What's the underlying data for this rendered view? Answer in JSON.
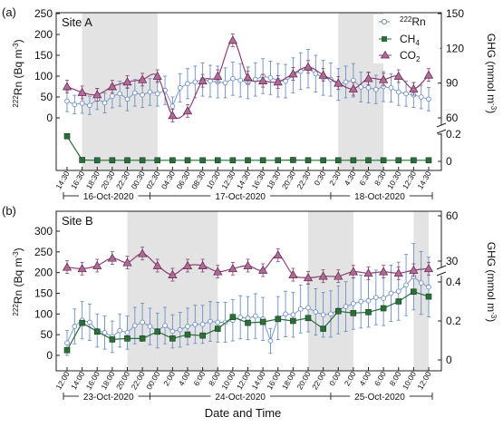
{
  "panels": [
    {
      "id": "a",
      "panel_label": "(a)",
      "site_label": "Site A",
      "x_tick_labels": [
        "14:30",
        "16:30",
        "18:30",
        "20:30",
        "22:30",
        "00:30",
        "02:30",
        "04:30",
        "06:30",
        "08:30",
        "10:30",
        "12:30",
        "14:30",
        "16:30",
        "18:30",
        "20:30",
        "22:30",
        "0:30",
        "2:30",
        "4:30",
        "6:30",
        "8:30",
        "10:30",
        "12:30",
        "14:30"
      ],
      "date_labels": [
        "16-Oct-2020",
        "17-Oct-2020",
        "18-Oct-2020"
      ]
    },
    {
      "id": "b",
      "panel_label": "(b)",
      "site_label": "Site B",
      "x_tick_labels": [
        "12:00",
        "14:00",
        "16:00",
        "18:00",
        "20:00",
        "22:00",
        "00:00",
        "2:00",
        "4:00",
        "6:00",
        "8:00",
        "10:00",
        "12:00",
        "14:00",
        "16:00",
        "18:00",
        "20:00",
        "22:00",
        "0:00",
        "2:00",
        "4:00",
        "6:00",
        "8:00",
        "10:00",
        "12:00"
      ],
      "date_labels": [
        "23-Oct-2020",
        "24-Oct-2020",
        "25-Oct-2020"
      ]
    }
  ],
  "axis_titles": {
    "rn_prefix": "222",
    "rn_main": "Rn (Bq m",
    "rn_exp": "-3",
    "rn_close": ")",
    "ghg_main": "GHG (mmol m",
    "ghg_exp": "-3",
    "ghg_close": ")",
    "x_title": "Date and Time"
  },
  "legend": {
    "rn_prefix": "222",
    "rn_main": "Rn",
    "ch4_main": "CH",
    "ch4_sub": "4",
    "co2_main": "CO",
    "co2_sub": "2"
  },
  "colors": {
    "rn": "#6d8fc4",
    "ch4": "#2b6e3b",
    "co2": "#8e3e72",
    "co2_fill": "#b06a96",
    "shade": "#d9d9d9"
  },
  "chart_data": [
    {
      "type": "line",
      "panel": "a",
      "x_unit": "2-hour ticks from 14:30 16-Oct-2020",
      "rn_axis": {
        "ylim": [
          -30,
          250
        ],
        "ticks": [
          0,
          50,
          100,
          150,
          200,
          250
        ]
      },
      "ghg_upper_axis": {
        "ylim": [
          46,
          150
        ],
        "ticks": [
          60,
          90,
          120,
          150
        ]
      },
      "ghg_lower_axis": {
        "ticks": [
          0,
          0.2
        ]
      },
      "shaded_x": [
        [
          1,
          6
        ],
        [
          18,
          21
        ]
      ],
      "series": [
        {
          "name": "CO2",
          "axis": "ghg_upper",
          "x": [
            0,
            1,
            2,
            3,
            4,
            5,
            6,
            7,
            8,
            9,
            10,
            11,
            12,
            13,
            14,
            15,
            16,
            17,
            18,
            19,
            20,
            21,
            22,
            23,
            24
          ],
          "y": [
            87,
            82,
            80,
            87,
            91,
            93,
            96,
            62,
            66,
            92,
            96,
            127,
            95,
            92,
            91,
            98,
            104,
            97,
            90,
            85,
            94,
            93,
            96,
            85,
            97
          ]
        },
        {
          "name": "CH4",
          "axis": "ghg_lower",
          "x": [
            0,
            1,
            2,
            3,
            4,
            5,
            6,
            7,
            8,
            9,
            10,
            11,
            12,
            13,
            14,
            15,
            16,
            17,
            18,
            19,
            20,
            21,
            22,
            23,
            24
          ],
          "y": [
            0.185,
            0.01,
            0.008,
            0.008,
            0.008,
            0.008,
            0.008,
            0.008,
            0.008,
            0.008,
            0.008,
            0.008,
            0.008,
            0.008,
            0.008,
            0.01,
            0.008,
            0.008,
            0.008,
            0.008,
            0.008,
            0.008,
            0.008,
            0.008,
            0.008
          ]
        },
        {
          "name": "222Rn",
          "axis": "rn",
          "x": [
            0,
            0.5,
            1,
            1.5,
            2,
            2.5,
            3,
            3.5,
            4,
            4.5,
            5,
            5.5,
            6,
            6.5,
            7,
            7.5,
            8,
            8.5,
            9,
            9.5,
            10,
            10.5,
            11,
            11.5,
            12,
            12.5,
            13,
            13.5,
            14,
            14.5,
            15,
            15.5,
            16,
            16.5,
            17,
            17.5,
            18,
            18.5,
            19,
            19.5,
            20,
            20.5,
            21,
            21.5,
            22,
            22.5,
            23,
            23.5,
            24
          ],
          "y": [
            40,
            32,
            35,
            30,
            45,
            36,
            52,
            58,
            45,
            60,
            55,
            62,
            58,
            66,
            28,
            72,
            82,
            86,
            92,
            88,
            86,
            84,
            94,
            90,
            84,
            92,
            100,
            96,
            90,
            88,
            102,
            112,
            118,
            106,
            96,
            92,
            80,
            86,
            90,
            74,
            72,
            68,
            75,
            72,
            62,
            58,
            55,
            50,
            45
          ],
          "err": [
            25,
            22,
            24,
            22,
            25,
            24,
            28,
            30,
            28,
            32,
            30,
            32,
            30,
            34,
            22,
            34,
            36,
            38,
            40,
            38,
            38,
            36,
            40,
            40,
            38,
            40,
            42,
            40,
            40,
            40,
            42,
            44,
            46,
            44,
            42,
            40,
            38,
            38,
            40,
            36,
            36,
            34,
            36,
            34,
            32,
            30,
            30,
            28,
            28
          ]
        }
      ]
    },
    {
      "type": "line",
      "panel": "b",
      "x_unit": "2-hour ticks from 12:00 23-Oct-2020",
      "rn_axis": {
        "ylim": [
          -30,
          320
        ],
        "ticks": [
          0,
          50,
          100,
          150,
          200,
          250,
          300
        ]
      },
      "ghg_upper_axis": {
        "ylim": [
          6,
          60
        ],
        "ticks": [
          30,
          60
        ]
      },
      "ghg_lower_axis": {
        "ticks": [
          0,
          0.2,
          0.4
        ]
      },
      "shaded_x": [
        [
          4,
          10
        ],
        [
          16,
          19
        ],
        [
          23,
          24
        ]
      ],
      "series": [
        {
          "name": "CO2",
          "axis": "ghg_upper",
          "x": [
            0,
            1,
            2,
            3,
            4,
            5,
            6,
            7,
            8,
            9,
            10,
            11,
            12,
            13,
            14,
            15,
            16,
            17,
            18,
            19,
            20,
            21,
            22,
            23,
            24
          ],
          "y": [
            26,
            25,
            27,
            32,
            29,
            35,
            27,
            21,
            27,
            27,
            23,
            25,
            27,
            24,
            34,
            21,
            19,
            20,
            20,
            23,
            22,
            23,
            22,
            24,
            25
          ]
        },
        {
          "name": "CH4",
          "axis": "ghg_lower",
          "x": [
            0,
            1,
            2,
            3,
            4,
            5,
            6,
            7,
            8,
            9,
            10,
            11,
            12,
            13,
            14,
            15,
            16,
            17,
            18,
            19,
            20,
            21,
            22,
            23,
            24
          ],
          "y": [
            0.05,
            0.19,
            0.145,
            0.105,
            0.11,
            0.11,
            0.145,
            0.11,
            0.13,
            0.125,
            0.16,
            0.22,
            0.19,
            0.195,
            0.21,
            0.2,
            0.215,
            0.16,
            0.25,
            0.24,
            0.245,
            0.265,
            0.3,
            0.35,
            0.325
          ]
        },
        {
          "name": "222Rn",
          "axis": "rn",
          "x": [
            0,
            0.5,
            1,
            1.5,
            2,
            2.5,
            3,
            3.5,
            4,
            4.5,
            5,
            5.5,
            6,
            6.5,
            7,
            7.5,
            8,
            8.5,
            9,
            9.5,
            10,
            10.5,
            11,
            11.5,
            12,
            12.5,
            13,
            13.5,
            14,
            14.5,
            15,
            15.5,
            16,
            16.5,
            17,
            17.5,
            18,
            18.5,
            19,
            19.5,
            20,
            20.5,
            21,
            21.5,
            22,
            22.5,
            23,
            23.5,
            24
          ],
          "y": [
            30,
            70,
            85,
            80,
            60,
            55,
            45,
            60,
            55,
            72,
            80,
            70,
            60,
            72,
            58,
            62,
            70,
            75,
            75,
            82,
            80,
            80,
            85,
            92,
            90,
            95,
            88,
            35,
            90,
            100,
            98,
            112,
            115,
            105,
            98,
            100,
            110,
            118,
            125,
            130,
            132,
            140,
            138,
            150,
            155,
            170,
            190,
            175,
            165
          ],
          "err": [
            30,
            42,
            45,
            44,
            40,
            40,
            38,
            40,
            40,
            44,
            46,
            44,
            42,
            44,
            40,
            42,
            44,
            46,
            46,
            48,
            48,
            48,
            50,
            52,
            52,
            54,
            52,
            30,
            52,
            55,
            54,
            58,
            58,
            56,
            54,
            56,
            58,
            60,
            62,
            64,
            64,
            66,
            66,
            68,
            70,
            74,
            80,
            76,
            72
          ]
        }
      ]
    }
  ]
}
